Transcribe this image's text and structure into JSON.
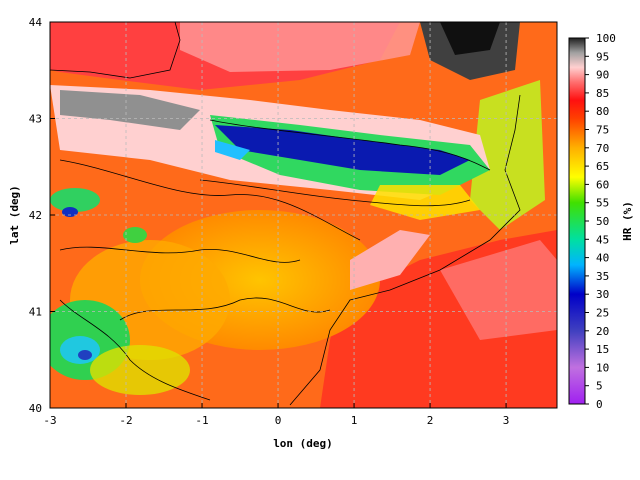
{
  "map": {
    "type": "raster-contour-map",
    "variable": "HR (%)",
    "xlabel": "lon (deg)",
    "ylabel": "lat (deg)",
    "xlim": [
      -3,
      3.67
    ],
    "ylim": [
      40,
      44
    ],
    "xticks": [
      "-3",
      "-2",
      "-1",
      "0",
      "1",
      "2",
      "3"
    ],
    "yticks": [
      "40",
      "41",
      "42",
      "43",
      "44"
    ],
    "grid": true,
    "grid_color": "#bbbbbb",
    "colorbar": {
      "label": "HR (%)",
      "min": 0,
      "max": 100,
      "ticks": [
        "0",
        "5",
        "10",
        "15",
        "20",
        "25",
        "30",
        "35",
        "40",
        "45",
        "50",
        "55",
        "60",
        "65",
        "70",
        "75",
        "80",
        "85",
        "90",
        "95",
        "100"
      ],
      "stops": [
        {
          "v": 0,
          "c": "#a020f0"
        },
        {
          "v": 10,
          "c": "#c070e0"
        },
        {
          "v": 20,
          "c": "#4040c0"
        },
        {
          "v": 30,
          "c": "#0000c8"
        },
        {
          "v": 38,
          "c": "#00b4ff"
        },
        {
          "v": 45,
          "c": "#00e0a0"
        },
        {
          "v": 55,
          "c": "#40e000"
        },
        {
          "v": 62,
          "c": "#ffff00"
        },
        {
          "v": 70,
          "c": "#ffb000"
        },
        {
          "v": 78,
          "c": "#ff4000"
        },
        {
          "v": 83,
          "c": "#ff1010"
        },
        {
          "v": 88,
          "c": "#ff7070"
        },
        {
          "v": 92,
          "c": "#ffd0d0"
        },
        {
          "v": 96,
          "c": "#a0a0a0"
        },
        {
          "v": 100,
          "c": "#202020"
        }
      ]
    },
    "regions": [
      {
        "name": "sea-south",
        "fill": "#ff4a2a"
      },
      {
        "name": "sea-north",
        "fill": "#ff3f3f"
      },
      {
        "name": "land-inland",
        "fill": "#ffb400"
      },
      {
        "name": "pyrenees-high",
        "fill": "#0a1ab0"
      },
      {
        "name": "pyrenees-green",
        "fill": "#30d860"
      },
      {
        "name": "coast-wet",
        "fill": "#ff7a7a"
      },
      {
        "name": "snow-grey",
        "fill": "#c8c8c8"
      }
    ]
  }
}
